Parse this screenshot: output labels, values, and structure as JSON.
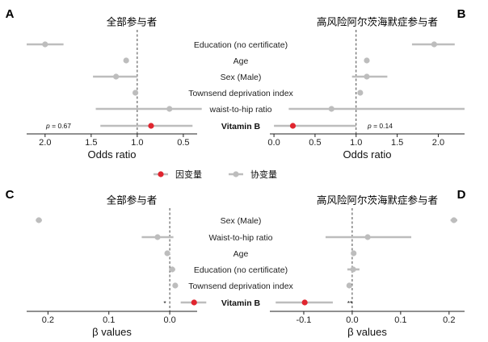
{
  "legend": {
    "outcome_label": "因变量",
    "covariate_label": "协变量",
    "colors": {
      "outcome": "#e0252f",
      "covariate": "#bdbdbd"
    }
  },
  "center_labels_top": [
    "Education (no certificate)",
    "Age",
    "Sex (Male)",
    "Townsend deprivation index",
    "waist-to-hip ratio",
    "Vitamin B"
  ],
  "center_labels_bottom": [
    "Sex (Male)",
    "Waist-to-hip ratio",
    "Age",
    "Education (no certificate)",
    "Townsend deprivation index",
    "Vitamin B"
  ],
  "chart_data": [
    {
      "panel": "A",
      "type": "forest",
      "title": "全部参与者",
      "xlabel": "Odds ratio",
      "x_reversed": true,
      "xlim": [
        2.2,
        0.35
      ],
      "ticks": [
        "2.0",
        "1.5",
        "1.0",
        "0.5"
      ],
      "tick_values": [
        2.0,
        1.5,
        1.0,
        0.5
      ],
      "reference": 1.0,
      "points": [
        {
          "label": "Education (no certificate)",
          "est": 2.0,
          "lo": 1.8,
          "hi": 2.2,
          "type": "covariate"
        },
        {
          "label": "Age",
          "est": 1.12,
          "lo": 1.12,
          "hi": 1.12,
          "type": "covariate"
        },
        {
          "label": "Sex (Male)",
          "est": 1.23,
          "lo": 1.0,
          "hi": 1.48,
          "type": "covariate"
        },
        {
          "label": "Townsend deprivation index",
          "est": 1.02,
          "lo": 1.02,
          "hi": 1.02,
          "type": "covariate"
        },
        {
          "label": "waist-to-hip ratio",
          "est": 0.65,
          "lo": 0.3,
          "hi": 1.45,
          "type": "covariate"
        },
        {
          "label": "Vitamin B",
          "est": 0.85,
          "lo": 0.4,
          "hi": 1.4,
          "type": "outcome"
        }
      ],
      "annotation": "p = 0.67"
    },
    {
      "panel": "B",
      "type": "forest",
      "title": "高风险阿尔茨海默症参与者",
      "xlabel": "Odds ratio",
      "x_reversed": false,
      "xlim": [
        -0.05,
        2.32
      ],
      "ticks": [
        "0.0",
        "0.5",
        "1.0",
        "1.5",
        "2.0"
      ],
      "tick_values": [
        0.0,
        0.5,
        1.0,
        1.5,
        2.0
      ],
      "reference": 1.0,
      "points": [
        {
          "label": "Education (no certificate)",
          "est": 1.95,
          "lo": 1.68,
          "hi": 2.2,
          "type": "covariate"
        },
        {
          "label": "Age",
          "est": 1.13,
          "lo": 1.13,
          "hi": 1.13,
          "type": "covariate"
        },
        {
          "label": "Sex (Male)",
          "est": 1.13,
          "lo": 0.95,
          "hi": 1.38,
          "type": "covariate"
        },
        {
          "label": "Townsend deprivation index",
          "est": 1.05,
          "lo": 1.05,
          "hi": 1.05,
          "type": "covariate"
        },
        {
          "label": "waist-to-hip ratio",
          "est": 0.7,
          "lo": 0.18,
          "hi": 2.32,
          "type": "covariate"
        },
        {
          "label": "Vitamin B",
          "est": 0.23,
          "lo": 0.0,
          "hi": 1.0,
          "type": "outcome"
        }
      ],
      "annotation": "p = 0.14"
    },
    {
      "panel": "C",
      "type": "forest",
      "title": "全部参与者",
      "xlabel": "β values",
      "x_reversed": true,
      "xlim": [
        0.235,
        -0.045
      ],
      "ticks": [
        "0.2",
        "0.1",
        "0.0"
      ],
      "tick_values": [
        0.2,
        0.1,
        0.0
      ],
      "reference": 0.0,
      "points": [
        {
          "label": "Sex (Male)",
          "est": 0.215,
          "lo": 0.21,
          "hi": 0.22,
          "type": "covariate"
        },
        {
          "label": "Waist-to-hip ratio",
          "est": 0.02,
          "lo": -0.006,
          "hi": 0.046,
          "type": "covariate"
        },
        {
          "label": "Age",
          "est": 0.004,
          "lo": 0.002,
          "hi": 0.006,
          "type": "covariate"
        },
        {
          "label": "Education (no certificate)",
          "est": -0.004,
          "lo": -0.009,
          "hi": 0.001,
          "type": "covariate"
        },
        {
          "label": "Townsend deprivation index",
          "est": -0.009,
          "lo": -0.009,
          "hi": -0.009,
          "type": "covariate"
        },
        {
          "label": "Vitamin B",
          "est": -0.04,
          "lo": -0.06,
          "hi": -0.018,
          "type": "outcome"
        }
      ],
      "annotation": "*"
    },
    {
      "panel": "D",
      "type": "forest",
      "title": "高风险阿尔茨海默症参与者",
      "xlabel": "β values",
      "x_reversed": false,
      "xlim": [
        -0.17,
        0.232
      ],
      "ticks": [
        "-0.1",
        "0.0",
        "0.1",
        "0.2"
      ],
      "tick_values": [
        -0.1,
        0.0,
        0.1,
        0.2
      ],
      "reference": 0.0,
      "points": [
        {
          "label": "Sex (Male)",
          "est": 0.21,
          "lo": 0.203,
          "hi": 0.217,
          "type": "covariate"
        },
        {
          "label": "Waist-to-hip ratio",
          "est": 0.032,
          "lo": -0.055,
          "hi": 0.122,
          "type": "covariate"
        },
        {
          "label": "Age",
          "est": 0.003,
          "lo": 0.001,
          "hi": 0.005,
          "type": "covariate"
        },
        {
          "label": "Education (no certificate)",
          "est": 0.002,
          "lo": -0.01,
          "hi": 0.015,
          "type": "covariate"
        },
        {
          "label": "Townsend deprivation index",
          "est": -0.006,
          "lo": -0.006,
          "hi": -0.006,
          "type": "covariate"
        },
        {
          "label": "Vitamin B",
          "est": -0.098,
          "lo": -0.158,
          "hi": -0.04,
          "type": "outcome"
        }
      ],
      "annotation": "**"
    }
  ]
}
